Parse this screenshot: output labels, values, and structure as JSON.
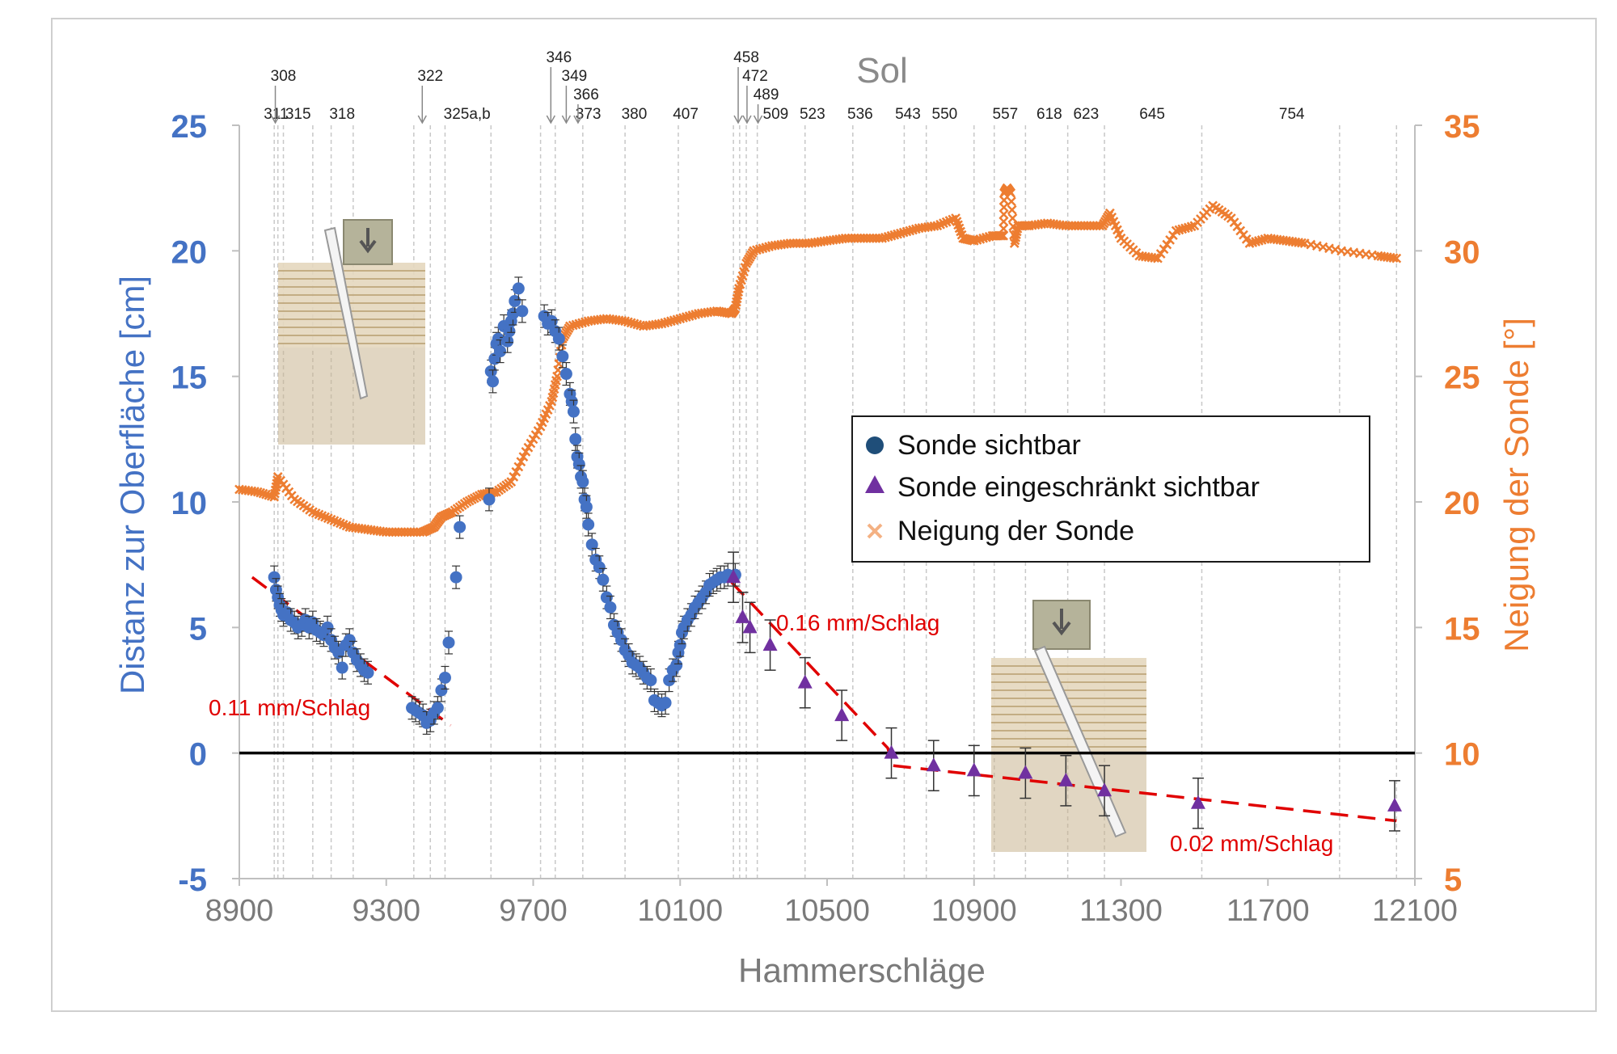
{
  "chart_data": {
    "type": "scatter",
    "sol_title": "Sol",
    "xlabel": "Hammerschläge",
    "ylabel_left": "Distanz zur Oberfläche [cm]",
    "ylabel_right": "Neigung der Sonde [°]",
    "xlim": [
      8900,
      12100
    ],
    "ylim_left": [
      -5,
      25
    ],
    "ylim_right": [
      5,
      35
    ],
    "x_ticks": [
      8900,
      9300,
      9700,
      10100,
      10500,
      10900,
      11300,
      11700,
      12100
    ],
    "y_ticks_left": [
      -5,
      0,
      5,
      10,
      15,
      20,
      25
    ],
    "y_ticks_right": [
      5,
      10,
      15,
      20,
      25,
      30,
      35
    ],
    "grid": "vertical dashed lines at sol boundaries",
    "colors": {
      "visible": "#4472c4",
      "limited": "#7030a0",
      "tilt": "#ed7d31",
      "trend": "#e00000",
      "axis_left": "#4472c4",
      "axis_right": "#ed7d31"
    },
    "legend": {
      "position": "center-right",
      "entries": [
        "Sonde sichtbar",
        "Sonde eingeschränkt sichtbar",
        "Neigung der Sonde"
      ]
    },
    "sol_labels": [
      {
        "x": 9000,
        "label": "311"
      },
      {
        "x": 9060,
        "label": "315"
      },
      {
        "x": 9180,
        "label": "318"
      },
      {
        "x": 9520,
        "label": "325a,b"
      },
      {
        "x": 9850,
        "label": "373"
      },
      {
        "x": 9975,
        "label": "380"
      },
      {
        "x": 10115,
        "label": "407"
      },
      {
        "x": 10360,
        "label": "509"
      },
      {
        "x": 10460,
        "label": "523"
      },
      {
        "x": 10590,
        "label": "536"
      },
      {
        "x": 10720,
        "label": "543"
      },
      {
        "x": 10820,
        "label": "550"
      },
      {
        "x": 10985,
        "label": "557"
      },
      {
        "x": 11105,
        "label": "618"
      },
      {
        "x": 11205,
        "label": "623"
      },
      {
        "x": 11385,
        "label": "645"
      },
      {
        "x": 11765,
        "label": "754"
      }
    ],
    "sol_arrows": [
      {
        "x": 8998,
        "label": "308",
        "level": 0
      },
      {
        "x": 9398,
        "label": "322",
        "level": 0
      },
      {
        "x": 9748,
        "label": "346",
        "level": -1
      },
      {
        "x": 9790,
        "label": "349",
        "level": 0
      },
      {
        "x": 9822,
        "label": "366",
        "level": 1
      },
      {
        "x": 10258,
        "label": "458",
        "level": -1
      },
      {
        "x": 10282,
        "label": "472",
        "level": 0
      },
      {
        "x": 10312,
        "label": "489",
        "level": 1
      }
    ],
    "sol_boundaries": [
      8995,
      9005,
      9020,
      9100,
      9150,
      9210,
      9375,
      9420,
      9460,
      9585,
      9720,
      9760,
      9835,
      9950,
      10095,
      10245,
      10262,
      10280,
      10310,
      10440,
      10570,
      10710,
      10770,
      10900,
      10955,
      11040,
      11155,
      11255,
      11520,
      11895,
      12050
    ],
    "trend_labels": [
      "0.11 mm/Schlag",
      "0.16 mm/Schlag",
      "0.02 mm/Schlag"
    ],
    "trend_lines": [
      {
        "label": "0.11 mm/Schlag",
        "x": [
          8935,
          9475
        ],
        "y": [
          7.0,
          1.1
        ]
      },
      {
        "label": "0.16 mm/Schlag",
        "x": [
          10240,
          10665,
          10680
        ],
        "y": [
          6.8,
          0.2,
          -0.5
        ]
      },
      {
        "label": "0.02 mm/Schlag",
        "x": [
          10680,
          12050
        ],
        "y": [
          -0.5,
          -2.7
        ]
      }
    ],
    "series": [
      {
        "name": "Sonde sichtbar",
        "marker": "circle",
        "x": [
          8995,
          9000,
          9005,
          9010,
          9015,
          9020,
          9030,
          9040,
          9050,
          9060,
          9070,
          9080,
          9090,
          9100,
          9110,
          9120,
          9130,
          9140,
          9150,
          9160,
          9170,
          9180,
          9190,
          9200,
          9210,
          9220,
          9230,
          9240,
          9250,
          9370,
          9380,
          9390,
          9400,
          9410,
          9420,
          9430,
          9440,
          9450,
          9460,
          9470,
          9490,
          9500,
          9580,
          9585,
          9590,
          9595,
          9600,
          9605,
          9610,
          9620,
          9630,
          9635,
          9640,
          9645,
          9650,
          9660,
          9670,
          9730,
          9740,
          9750,
          9760,
          9770,
          9780,
          9790,
          9800,
          9805,
          9810,
          9815,
          9820,
          9825,
          9830,
          9835,
          9840,
          9845,
          9850,
          9860,
          9870,
          9880,
          9890,
          9900,
          9910,
          9920,
          9930,
          9940,
          9950,
          9960,
          9970,
          9980,
          9990,
          10000,
          10010,
          10020,
          10030,
          10040,
          10050,
          10060,
          10070,
          10080,
          10090,
          10095,
          10100,
          10105,
          10110,
          10120,
          10130,
          10140,
          10150,
          10160,
          10170,
          10180,
          10190,
          10200,
          10210,
          10220,
          10230,
          10250
        ],
        "y": [
          7.0,
          6.5,
          6.2,
          5.9,
          5.7,
          5.5,
          5.6,
          5.3,
          5.2,
          5.0,
          5.1,
          5.3,
          5.0,
          5.2,
          4.9,
          4.8,
          4.7,
          5.0,
          4.5,
          4.2,
          4.0,
          3.4,
          4.3,
          4.5,
          4.0,
          3.7,
          3.5,
          3.3,
          3.2,
          1.8,
          1.7,
          1.6,
          1.5,
          1.2,
          1.3,
          1.6,
          1.8,
          2.5,
          3.0,
          4.4,
          7.0,
          9.0,
          10.1,
          15.2,
          14.8,
          15.7,
          16.3,
          16.5,
          16.0,
          17.0,
          16.4,
          16.8,
          17.2,
          17.5,
          18.0,
          18.5,
          17.6,
          17.4,
          17.1,
          17.2,
          16.8,
          16.5,
          15.8,
          15.1,
          14.3,
          14.0,
          13.6,
          12.5,
          11.8,
          11.5,
          11.0,
          10.8,
          10.1,
          9.8,
          9.1,
          8.3,
          7.7,
          7.4,
          6.9,
          6.2,
          5.8,
          5.1,
          4.8,
          4.5,
          4.1,
          3.9,
          3.6,
          3.5,
          3.4,
          3.2,
          3.0,
          2.9,
          2.1,
          2.0,
          1.9,
          2.0,
          2.9,
          3.3,
          3.5,
          4.0,
          4.3,
          4.8,
          5.0,
          5.3,
          5.5,
          5.8,
          6.0,
          6.2,
          6.4,
          6.7,
          6.8,
          6.9,
          7.0,
          7.0,
          7.1,
          7.1
        ]
      },
      {
        "name": "Sonde eingeschränkt sichtbar",
        "marker": "triangle",
        "x": [
          10245,
          10270,
          10290,
          10345,
          10440,
          10540,
          10675,
          10790,
          10900,
          11040,
          11150,
          11255,
          11510,
          12045
        ],
        "y": [
          7.0,
          5.4,
          5.0,
          4.3,
          2.8,
          1.5,
          0.0,
          -0.5,
          -0.7,
          -0.8,
          -1.1,
          -1.5,
          -2.0,
          -2.1
        ]
      },
      {
        "name": "Neigung der Sonde",
        "marker": "x",
        "x": [
          8900,
          8950,
          8995,
          9005,
          9050,
          9100,
          9150,
          9200,
          9250,
          9300,
          9350,
          9400,
          9430,
          9450,
          9480,
          9520,
          9560,
          9600,
          9640,
          9680,
          9720,
          9750,
          9765,
          9780,
          9800,
          9850,
          9900,
          9950,
          10000,
          10050,
          10100,
          10150,
          10200,
          10240,
          10250,
          10260,
          10280,
          10300,
          10350,
          10400,
          10450,
          10500,
          10550,
          10600,
          10650,
          10700,
          10750,
          10800,
          10850,
          10870,
          10900,
          10950,
          10980,
          10982,
          10990,
          11000,
          11010,
          11020,
          11050,
          11100,
          11150,
          11200,
          11250,
          11270,
          11300,
          11350,
          11400,
          11450,
          11500,
          11550,
          11600,
          11650,
          11700,
          11750,
          11800,
          11900,
          12000,
          12050
        ],
        "y": [
          20.5,
          20.4,
          20.2,
          21.0,
          20.1,
          19.6,
          19.3,
          19.0,
          18.9,
          18.8,
          18.8,
          18.8,
          19.0,
          19.4,
          19.6,
          20.0,
          20.3,
          20.4,
          20.8,
          22.0,
          23.0,
          24.0,
          25.0,
          26.5,
          27.0,
          27.2,
          27.3,
          27.2,
          27.0,
          27.1,
          27.3,
          27.5,
          27.6,
          27.5,
          27.7,
          28.5,
          29.5,
          30.0,
          30.2,
          30.3,
          30.3,
          30.4,
          30.5,
          30.5,
          30.5,
          30.7,
          30.9,
          31.0,
          31.3,
          30.5,
          30.4,
          30.6,
          30.6,
          32.3,
          32.5,
          32.3,
          30.3,
          31.0,
          31.0,
          31.1,
          31.0,
          31.0,
          31.0,
          31.5,
          30.5,
          29.8,
          29.7,
          30.8,
          31.0,
          31.8,
          31.3,
          30.3,
          30.5,
          30.4,
          30.3,
          30.0,
          29.8,
          29.7
        ]
      }
    ]
  }
}
